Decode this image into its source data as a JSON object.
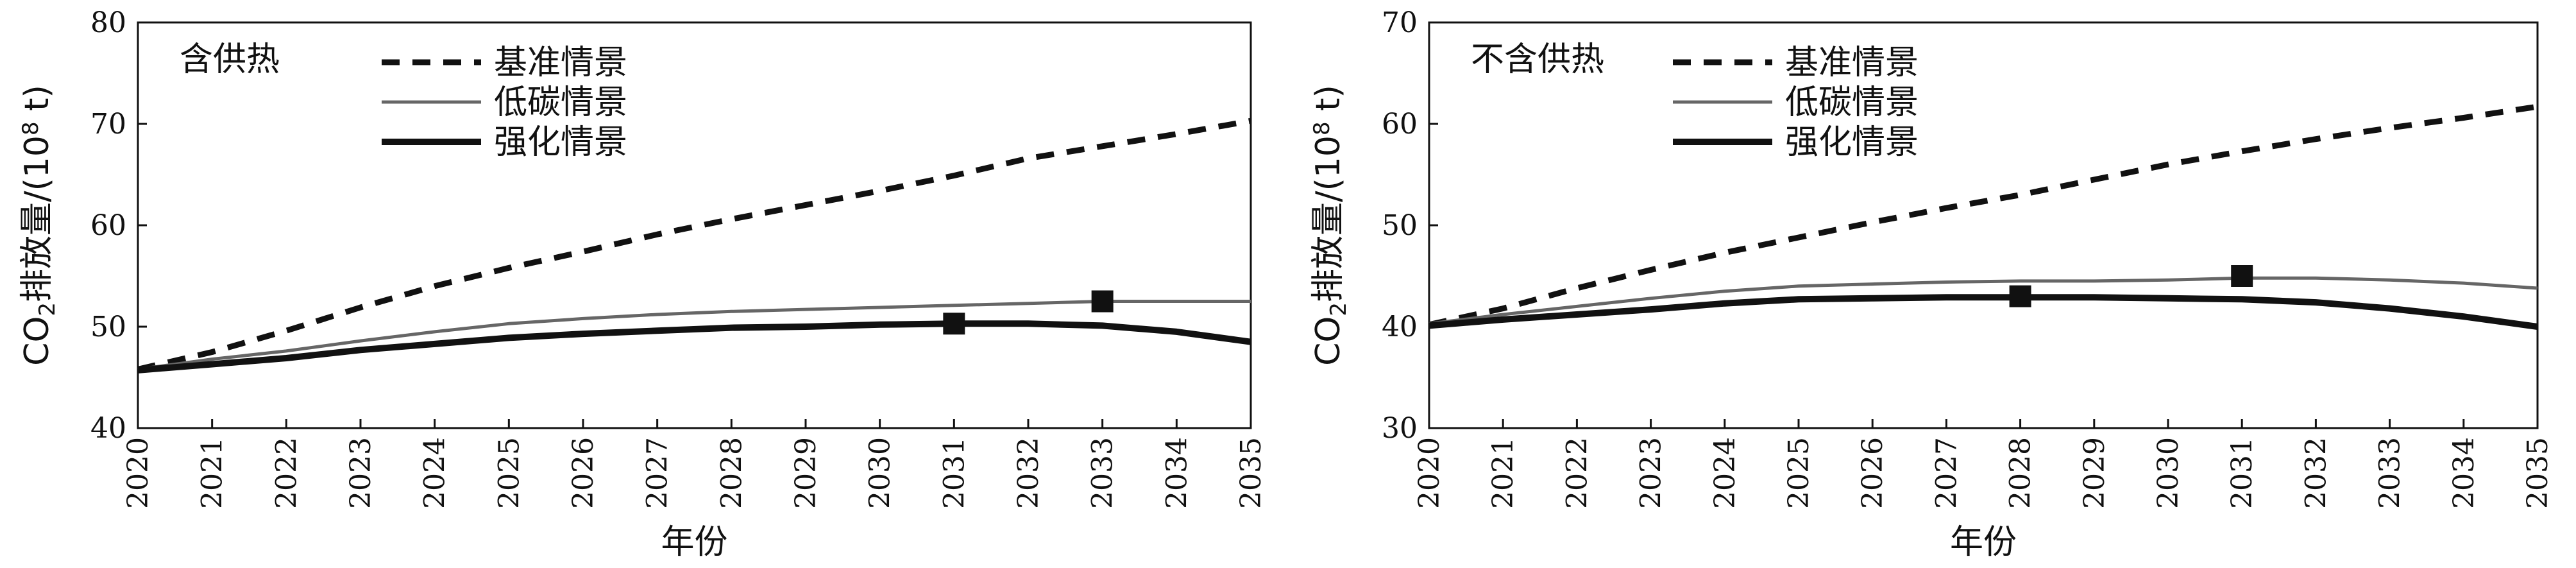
{
  "chart_data": [
    {
      "type": "line",
      "title": "含供热",
      "ylabel_main": "CO",
      "ylabel_sub": "2",
      "ylabel_tail": "排放量/(10",
      "ylabel_sup": "8",
      "ylabel_end": " t)",
      "xlabel": "年份",
      "ylim": [
        40,
        80
      ],
      "yticks": [
        40,
        50,
        60,
        70,
        80
      ],
      "x": [
        2020,
        2021,
        2022,
        2023,
        2024,
        2025,
        2026,
        2027,
        2028,
        2029,
        2030,
        2031,
        2032,
        2033,
        2034,
        2035
      ],
      "series": [
        {
          "name": "基准情景",
          "style": "dashed",
          "color": "#111111",
          "values": [
            45.8,
            47.5,
            49.6,
            51.9,
            54.0,
            55.8,
            57.4,
            59.1,
            60.6,
            62.0,
            63.4,
            64.9,
            66.6,
            67.8,
            69.0,
            70.3
          ]
        },
        {
          "name": "低碳情景",
          "style": "thin",
          "color": "#666666",
          "values": [
            45.8,
            46.8,
            47.6,
            48.6,
            49.5,
            50.3,
            50.8,
            51.2,
            51.5,
            51.7,
            51.9,
            52.1,
            52.3,
            52.5,
            52.5,
            52.5
          ]
        },
        {
          "name": "强化情景",
          "style": "thick",
          "color": "#111111",
          "values": [
            45.7,
            46.3,
            46.9,
            47.7,
            48.3,
            48.9,
            49.3,
            49.6,
            49.9,
            50.0,
            50.2,
            50.3,
            50.3,
            50.1,
            49.5,
            48.5
          ]
        }
      ],
      "markers": [
        {
          "x": 2031,
          "y": 50.3
        },
        {
          "x": 2033,
          "y": 52.5
        }
      ]
    },
    {
      "type": "line",
      "title": "不含供热",
      "ylabel_main": "CO",
      "ylabel_sub": "2",
      "ylabel_tail": "排放量/(10",
      "ylabel_sup": "8",
      "ylabel_end": " t)",
      "xlabel": "年份",
      "ylim": [
        30,
        70
      ],
      "yticks": [
        30,
        40,
        50,
        60,
        70
      ],
      "x": [
        2020,
        2021,
        2022,
        2023,
        2024,
        2025,
        2026,
        2027,
        2028,
        2029,
        2030,
        2031,
        2032,
        2033,
        2034,
        2035
      ],
      "series": [
        {
          "name": "基准情景",
          "style": "dashed",
          "color": "#111111",
          "values": [
            40.2,
            41.8,
            43.8,
            45.6,
            47.3,
            48.8,
            50.3,
            51.7,
            53.0,
            54.5,
            56.0,
            57.3,
            58.5,
            59.6,
            60.6,
            61.7
          ]
        },
        {
          "name": "低碳情景",
          "style": "thin",
          "color": "#666666",
          "values": [
            40.3,
            41.2,
            42.0,
            42.8,
            43.5,
            44.0,
            44.2,
            44.4,
            44.5,
            44.5,
            44.6,
            44.8,
            44.8,
            44.6,
            44.3,
            43.8
          ]
        },
        {
          "name": "强化情景",
          "style": "thick",
          "color": "#111111",
          "values": [
            40.1,
            40.7,
            41.2,
            41.7,
            42.3,
            42.7,
            42.8,
            42.9,
            42.9,
            42.9,
            42.8,
            42.7,
            42.4,
            41.8,
            41.0,
            40.0
          ]
        }
      ],
      "markers": [
        {
          "x": 2028,
          "y": 43.0
        },
        {
          "x": 2031,
          "y": 45.0
        }
      ]
    }
  ]
}
